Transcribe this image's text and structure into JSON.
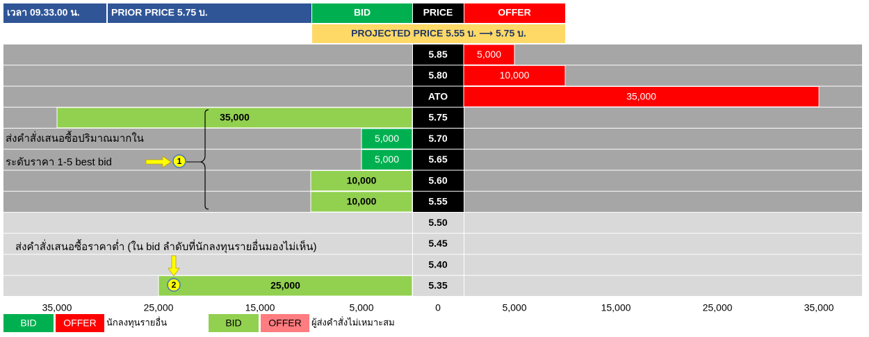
{
  "header": {
    "time": "เวลา 09.33.00 น.",
    "prior": "PRIOR PRICE 5.75 บ.",
    "bid": "BID",
    "price": "PRICE",
    "offer": "OFFER",
    "projected": "PROJECTED PRICE 5.55 บ. ⟶ 5.75 บ."
  },
  "chart_data": {
    "type": "order_book",
    "categories": [
      "5.85",
      "5.80",
      "ATO",
      "5.75",
      "5.70",
      "5.65",
      "5.60",
      "5.55",
      "5.50",
      "5.45",
      "5.40",
      "5.35"
    ],
    "row_colors": [
      "#a6a6a6",
      "#a6a6a6",
      "#a6a6a6",
      "#a6a6a6",
      "#a6a6a6",
      "#a6a6a6",
      "#a6a6a6",
      "#a6a6a6",
      "#d9d9d9",
      "#d9d9d9",
      "#d9d9d9",
      "#d9d9d9"
    ],
    "price_colors": [
      "#000000",
      "#000000",
      "#000000",
      "#000000",
      "#000000",
      "#000000",
      "#000000",
      "#000000",
      "#d9d9d9",
      "#d9d9d9",
      "#d9d9d9",
      "#d9d9d9"
    ],
    "groups": [
      {
        "label": "นักลงทุนรายอื่น",
        "series": [
          {
            "name": "BID",
            "side": "bid",
            "color": "#00b050",
            "label_color": "#ffffff",
            "label_bold": false,
            "values": [
              null,
              null,
              null,
              null,
              5000,
              5000,
              null,
              null,
              null,
              null,
              null,
              null
            ],
            "value_labels": [
              null,
              null,
              null,
              null,
              "5,000",
              "5,000",
              null,
              null,
              null,
              null,
              null,
              null
            ]
          },
          {
            "name": "OFFER",
            "side": "offer",
            "color": "#ff0000",
            "label_color": "#ffffff",
            "label_bold": false,
            "values": [
              5000,
              10000,
              35000,
              null,
              null,
              null,
              null,
              null,
              null,
              null,
              null,
              null
            ],
            "value_labels": [
              "5,000",
              "10,000",
              "35,000",
              null,
              null,
              null,
              null,
              null,
              null,
              null,
              null,
              null
            ]
          }
        ]
      },
      {
        "label": "ผู้ส่งคำสั่งไม่เหมาะสม",
        "series": [
          {
            "name": "BID",
            "side": "bid",
            "color": "#92d050",
            "label_color": "#000000",
            "label_bold": true,
            "values": [
              null,
              null,
              null,
              35000,
              null,
              null,
              10000,
              10000,
              null,
              null,
              null,
              25000
            ],
            "value_labels": [
              null,
              null,
              null,
              "35,000",
              null,
              null,
              "10,000",
              "10,000",
              null,
              null,
              null,
              "25,000"
            ]
          },
          {
            "name": "OFFER",
            "side": "offer",
            "color": "#ff7c80",
            "label_color": "#000000",
            "label_bold": true,
            "values": [
              null,
              null,
              null,
              null,
              null,
              null,
              null,
              null,
              null,
              null,
              null,
              null
            ]
          }
        ]
      }
    ],
    "xticks_bid": [
      {
        "value": 35000,
        "label": "35,000"
      },
      {
        "value": 25000,
        "label": "25,000"
      },
      {
        "value": 15000,
        "label": "15,000"
      },
      {
        "value": 5000,
        "label": "5,000"
      }
    ],
    "xtick_zero": 0,
    "xticks_offer": [
      {
        "value": 5000,
        "label": "5,000"
      },
      {
        "value": 15000,
        "label": "15,000"
      },
      {
        "value": 25000,
        "label": "25,000"
      },
      {
        "value": 35000,
        "label": "35,000"
      }
    ],
    "annotations": [
      "ส่งคำสั่งเสนอซื้อปริมาณมากใน",
      "ระดับราคา  1-5 best bid",
      "ส่งคำสั่งเสนอซื้อราคาต่ำ (ใน bid ลำดับที่นักลงทุนรายอื่นมองไม่เห็น)"
    ],
    "markers": [
      "1",
      "2"
    ]
  }
}
